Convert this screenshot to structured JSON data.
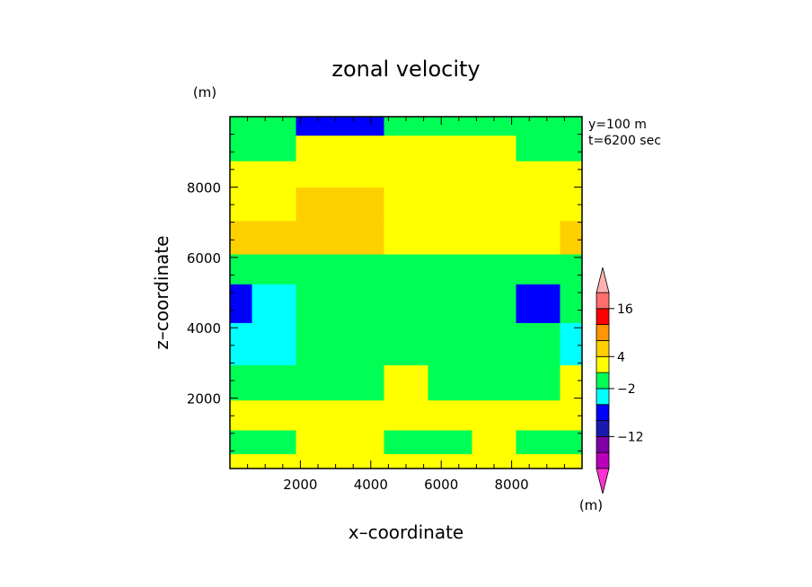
{
  "chart_data": {
    "type": "heatmap",
    "title": "zonal velocity",
    "xlabel": "x–coordinate",
    "ylabel": "z–coordinate",
    "x_unit": "(m)",
    "y_unit": "(m)",
    "colorbar_unit": "(m)",
    "annotations": [
      "y=100 m",
      "t=6200 sec"
    ],
    "xlim": [
      0,
      10000
    ],
    "ylim": [
      0,
      10000
    ],
    "xticks": [
      2000,
      4000,
      6000,
      8000
    ],
    "yticks": [
      2000,
      4000,
      6000,
      8000
    ],
    "xtick_labels": [
      "2000",
      "4000",
      "6000",
      "8000"
    ],
    "ytick_labels": [
      "2000",
      "4000",
      "6000",
      "8000"
    ],
    "colorbar": {
      "levels": [
        -20,
        -16,
        -12,
        -8,
        -4,
        -2,
        0,
        4,
        8,
        12,
        16,
        20
      ],
      "labels": [
        {
          "value": 16,
          "text": "16"
        },
        {
          "value": 4,
          "text": "4"
        },
        {
          "value": -2,
          "text": "−2"
        },
        {
          "value": -12,
          "text": "−12"
        }
      ],
      "colors": [
        "#b800b8",
        "#8000a8",
        "#1a1ab0",
        "#0000ff",
        "#00ffff",
        "#00ff55",
        "#ffff00",
        "#ffd000",
        "#ff9500",
        "#ff0000",
        "#ff6f6f"
      ],
      "extend_low_color": "#ff30cf",
      "extend_high_color": "#ffb0b0"
    },
    "z_levels": [
      150,
      700,
      1500,
      2400,
      3500,
      4800,
      5700,
      6500,
      7600,
      8400,
      9100,
      9850
    ],
    "x_points": [
      0,
      1250,
      2500,
      3750,
      5000,
      6250,
      7500,
      8750,
      10000
    ],
    "values": [
      [
        2,
        2,
        2,
        2,
        2,
        2,
        2,
        2,
        2
      ],
      [
        -1,
        -1,
        1,
        1,
        -1,
        -1,
        1,
        -1,
        -1
      ],
      [
        2,
        2,
        2,
        2,
        2,
        2,
        1,
        2,
        2
      ],
      [
        -1,
        -1,
        -1,
        -1,
        1,
        -1,
        -1,
        -1,
        2
      ],
      [
        -3,
        -3,
        -1,
        -1,
        -1,
        -1,
        -1,
        -1,
        -3
      ],
      [
        -5,
        -3,
        -1,
        -1,
        -1,
        -1,
        -1,
        -5,
        -1
      ],
      [
        -1,
        -1,
        -1,
        -1,
        -1,
        -1,
        -1,
        -1,
        -1
      ],
      [
        6,
        6,
        6,
        6,
        3,
        3,
        3,
        3,
        6
      ],
      [
        3,
        3,
        6,
        6,
        3,
        3,
        3,
        3,
        3
      ],
      [
        2,
        3,
        3,
        3,
        3,
        3,
        3,
        2,
        2
      ],
      [
        -1,
        -1,
        2,
        2,
        2,
        2,
        2,
        -1,
        -1
      ],
      [
        -1,
        -1,
        -5,
        -5,
        -1,
        -1,
        -1,
        -1,
        -1
      ]
    ]
  }
}
